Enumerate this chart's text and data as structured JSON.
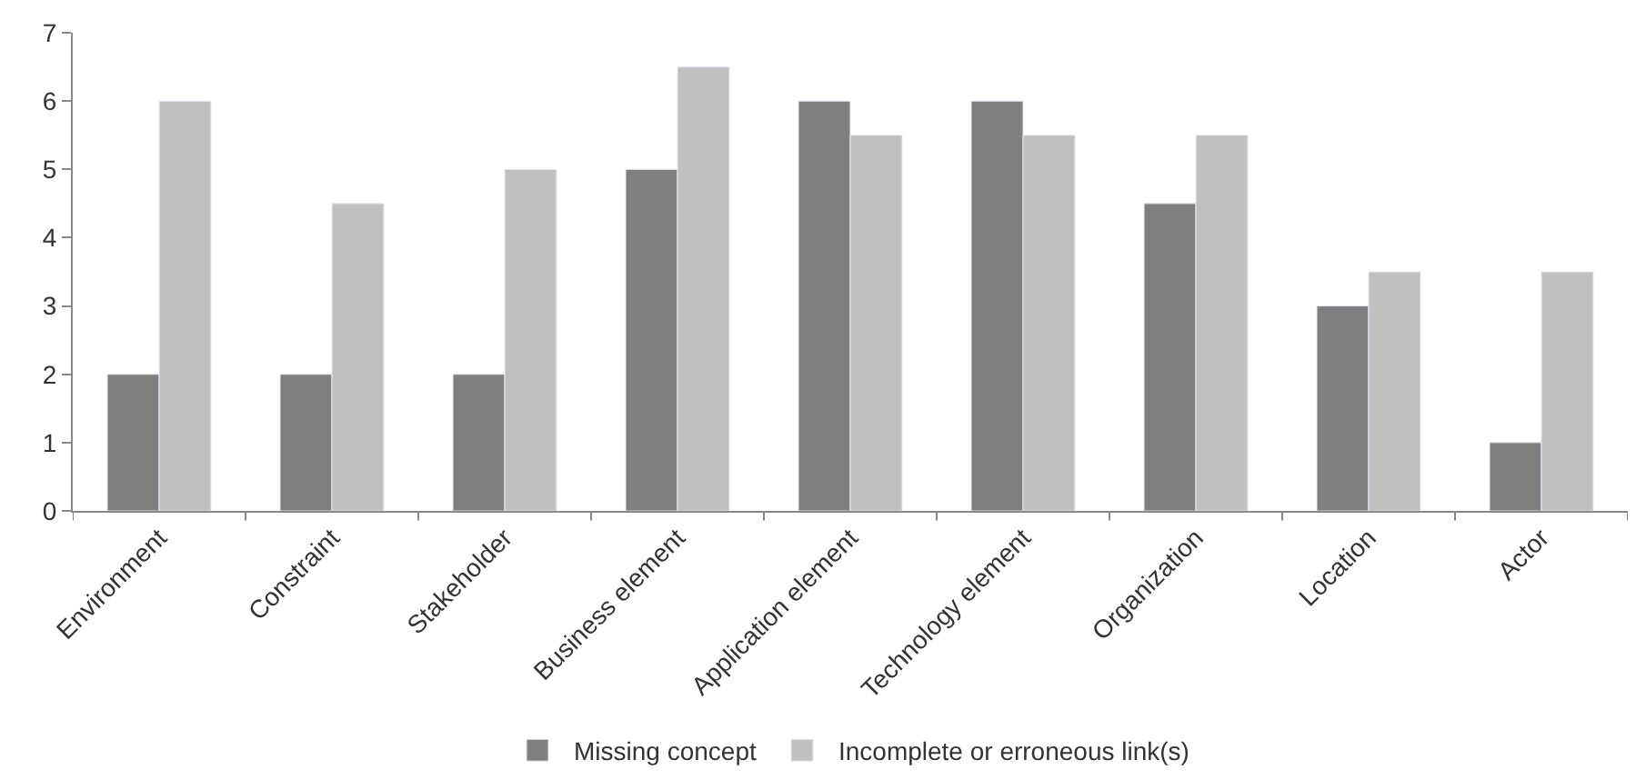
{
  "chart_data": {
    "type": "bar",
    "categories": [
      "Environment",
      "Constraint",
      "Stakeholder",
      "Business element",
      "Application element",
      "Technology element",
      "Organization",
      "Location",
      "Actor"
    ],
    "series": [
      {
        "name": "Missing concept",
        "color": "#7f7f7f",
        "values": [
          2,
          2,
          2,
          5,
          6,
          6,
          4.5,
          3,
          1
        ]
      },
      {
        "name": "Incomplete or erroneous link(s)",
        "color": "#c0c0c0",
        "values": [
          6,
          4.5,
          5,
          6.5,
          5.5,
          5.5,
          5.5,
          3.5,
          3.5
        ]
      }
    ],
    "ylim": [
      0,
      7
    ],
    "yticks": [
      0,
      1,
      2,
      3,
      4,
      5,
      6,
      7
    ],
    "legend": "bottom"
  }
}
